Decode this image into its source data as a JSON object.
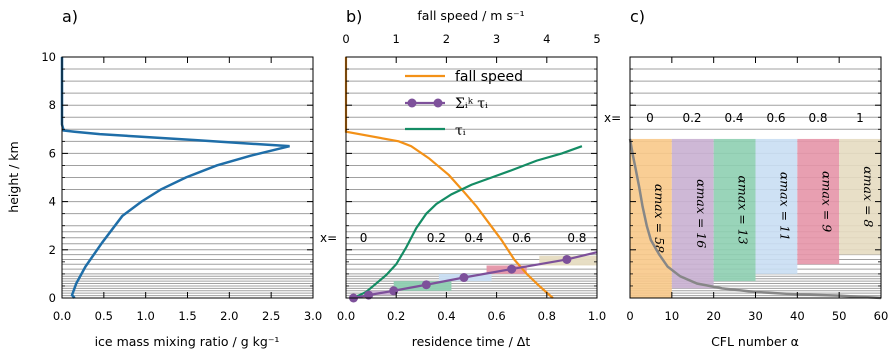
{
  "colors": {
    "blue": "#1f6ea8",
    "orange": "#f39117",
    "purple": "#7d509a",
    "green": "#148c64",
    "gray": "#878787",
    "grid": "#a0a0a0",
    "bands": [
      "#f8c98a",
      "#c9b0d2",
      "#8ecfb1",
      "#c9def3",
      "#e595a8",
      "#e6dcc1"
    ]
  },
  "chart_data": [
    {
      "panel": "a)",
      "type": "line",
      "xlabel": "ice mass mixing ratio / g kg⁻¹",
      "ylabel": "height / km",
      "xlim": [
        0,
        3
      ],
      "ylim": [
        0,
        10
      ],
      "xticks": [
        "0.0",
        "0.5",
        "1.0",
        "1.5",
        "2.0",
        "2.5",
        "3.0"
      ],
      "yticks": [
        "0",
        "2",
        "4",
        "6",
        "8",
        "10"
      ],
      "grid_levels": [
        0.1,
        0.2,
        0.3,
        0.4,
        0.5,
        0.6,
        0.7,
        0.8,
        0.9,
        1.0,
        1.2,
        1.4,
        1.6,
        1.8,
        2.0,
        2.25,
        2.5,
        2.75,
        3.0,
        3.5,
        4.0,
        4.5,
        5.0,
        5.5,
        6.0,
        6.5,
        7.0,
        7.5,
        8.0,
        8.5,
        9.0,
        9.5,
        10.0
      ],
      "series": [
        {
          "x": [
            0.15,
            0.12,
            0.17,
            0.28,
            0.48,
            0.72,
            0.95,
            1.18,
            1.48,
            1.85,
            2.25,
            2.72,
            1.6,
            0.9,
            0.45,
            0.15,
            0.02,
            0.0,
            0.0,
            0.0
          ],
          "y": [
            0.0,
            0.12,
            0.6,
            1.3,
            2.3,
            3.4,
            4.0,
            4.5,
            5.0,
            5.5,
            5.9,
            6.3,
            6.55,
            6.7,
            6.8,
            6.9,
            6.95,
            7.2,
            8.5,
            10.0
          ]
        }
      ]
    },
    {
      "panel": "b)",
      "type": "line",
      "xlabel": "residence time / Δt",
      "x2label": "fall speed / m s⁻¹",
      "xlim": [
        0,
        1
      ],
      "x2lim": [
        0,
        5
      ],
      "ylim": [
        0,
        10
      ],
      "xticks": [
        "0.0",
        "0.2",
        "0.4",
        "0.6",
        "0.8",
        "1.0"
      ],
      "x2ticks": [
        "0",
        "1",
        "2",
        "3",
        "4",
        "5"
      ],
      "legend_position": "top-right",
      "series": [
        {
          "name": "fall speed",
          "x": [
            4.12,
            3.85,
            3.6,
            3.35,
            3.1,
            2.85,
            2.6,
            2.35,
            2.05,
            1.65,
            1.3,
            1.05,
            0.0,
            0.0
          ],
          "y": [
            0.0,
            0.5,
            1.0,
            1.6,
            2.4,
            3.1,
            3.8,
            4.4,
            5.1,
            5.8,
            6.3,
            6.5,
            6.9,
            10.0
          ],
          "axis": "top"
        },
        {
          "name": "Σᵢᵏ τᵢ",
          "x": [
            0.03,
            0.09,
            0.19,
            0.32,
            0.47,
            0.66,
            0.88,
            1.0
          ],
          "y": [
            0.0,
            0.12,
            0.3,
            0.55,
            0.85,
            1.2,
            1.6,
            1.9
          ]
        },
        {
          "name": "τᵢ",
          "x": [
            0.02,
            0.05,
            0.08,
            0.12,
            0.16,
            0.2,
            0.24,
            0.28,
            0.32,
            0.36,
            0.42,
            0.5,
            0.58,
            0.66,
            0.76,
            0.86,
            0.94
          ],
          "y": [
            0.0,
            0.1,
            0.25,
            0.6,
            0.95,
            1.4,
            2.1,
            2.9,
            3.5,
            3.9,
            4.3,
            4.7,
            5.0,
            5.3,
            5.7,
            6.0,
            6.3
          ]
        }
      ],
      "steps": [
        {
          "x0": 0.03,
          "x1": 0.09,
          "y0": 0.0,
          "y1": 0.12
        },
        {
          "x0": 0.09,
          "x1": 0.19,
          "y0": 0.12,
          "y1": 0.3
        },
        {
          "x0": 0.19,
          "x1": 0.42,
          "y0": 0.3,
          "y1": 0.7
        },
        {
          "x0": 0.37,
          "x1": 0.58,
          "y0": 0.7,
          "y1": 1.0
        },
        {
          "x0": 0.56,
          "x1": 0.72,
          "y0": 1.0,
          "y1": 1.35
        },
        {
          "x0": 0.77,
          "x1": 1.0,
          "y0": 1.35,
          "y1": 1.75
        }
      ],
      "annotation_prefix": "x=",
      "annotation_labels": [
        "0",
        "0.2",
        "0.4",
        "0.6",
        "0.8"
      ],
      "annotation_x": [
        0.03,
        0.32,
        0.47,
        0.66,
        0.88
      ]
    },
    {
      "panel": "c)",
      "type": "line",
      "xlabel": "CFL number α",
      "xlim": [
        0,
        60
      ],
      "ylim": [
        0,
        10
      ],
      "xticks": [
        "0",
        "10",
        "20",
        "30",
        "40",
        "50",
        "60"
      ],
      "annotation_prefix": "x=",
      "annotation_labels": [
        "0",
        "0.2",
        "0.4",
        "0.6",
        "0.8",
        "1"
      ],
      "bands": [
        {
          "x0": 0,
          "x1": 10,
          "y0": 0.0,
          "y1": 6.6,
          "label": "αmax = 58"
        },
        {
          "x0": 10,
          "x1": 20,
          "y0": 0.4,
          "y1": 6.6,
          "label": "αmax = 16"
        },
        {
          "x0": 20,
          "x1": 30,
          "y0": 0.7,
          "y1": 6.6,
          "label": "αmax = 13"
        },
        {
          "x0": 30,
          "x1": 40,
          "y0": 1.0,
          "y1": 6.6,
          "label": "αmax = 11"
        },
        {
          "x0": 40,
          "x1": 50,
          "y0": 1.4,
          "y1": 6.6,
          "label": "αmax = 9"
        },
        {
          "x0": 50,
          "x1": 60,
          "y0": 1.8,
          "y1": 6.6,
          "label": "αmax = 8"
        }
      ],
      "series": [
        {
          "x": [
            60,
            50,
            40,
            30,
            22,
            16,
            12,
            9,
            7,
            5,
            4,
            3,
            2.2,
            1.3,
            0.6,
            0.2,
            0.0
          ],
          "y": [
            0.0,
            0.1,
            0.15,
            0.25,
            0.4,
            0.6,
            0.9,
            1.3,
            1.8,
            2.4,
            3.0,
            3.8,
            4.6,
            5.4,
            6.0,
            6.4,
            6.6
          ]
        }
      ]
    }
  ]
}
